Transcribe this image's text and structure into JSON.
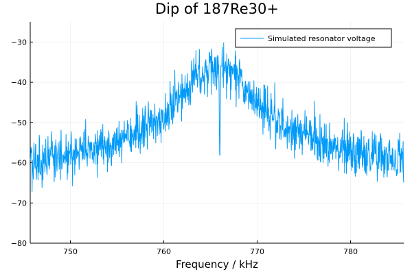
{
  "chart_data": {
    "type": "line",
    "title": "Dip of 187Re30+",
    "xlabel": "Frequency / kHz",
    "ylabel": "",
    "xlim": [
      745.7,
      785.7
    ],
    "ylim": [
      -80,
      -25
    ],
    "x_ticks": [
      750,
      760,
      770,
      780
    ],
    "y_ticks": [
      -80,
      -70,
      -60,
      -50,
      -40,
      -30
    ],
    "x_tick_labels": [
      "750",
      "760",
      "770",
      "780"
    ],
    "y_tick_labels": [
      "−80",
      "−70",
      "−60",
      "−50",
      "−40",
      "−30"
    ],
    "grid": true,
    "legend_position": "top-right",
    "series": [
      {
        "name": "Simulated resonator voltage",
        "color": "#009af9",
        "model": "lorentzian-with-dip-plus-noise",
        "center_khz": 765.7,
        "peak_dbv": -36,
        "baseline_dbv": -64,
        "half_width_khz": 4.2,
        "dip_center_khz": 766.0,
        "dip_depth_dbv": -59.5,
        "noise_dbv": 2.8,
        "points": 1200
      }
    ]
  }
}
